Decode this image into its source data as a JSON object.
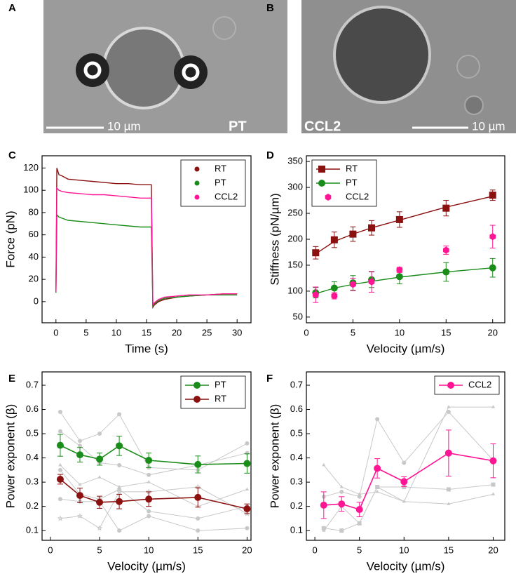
{
  "images": [
    {
      "label": "A",
      "scale_bar": "10 µm",
      "caption": "PT"
    },
    {
      "label": "B",
      "scale_bar": "10 µm",
      "caption": "CCL2"
    }
  ],
  "chart_data": [
    {
      "type": "line",
      "label": "C",
      "xlabel": "Time (s)",
      "ylabel": "Force (pN)",
      "x": [
        0,
        0.15,
        0.5,
        1,
        2,
        4,
        6,
        8,
        10,
        12,
        14,
        15.8,
        16.05,
        16.3,
        17,
        18,
        20,
        22,
        25,
        28,
        30
      ],
      "xlim": [
        -2.3,
        32.3
      ],
      "xticks": [
        0,
        5,
        10,
        15,
        20,
        25,
        30
      ],
      "ylim": [
        -19,
        131
      ],
      "yticks": [
        0,
        20,
        40,
        60,
        80,
        100,
        120
      ],
      "legend": "upper right",
      "series": [
        {
          "name": "RT",
          "color": "#8b1010",
          "values": [
            10,
            120,
            114,
            113,
            110,
            109,
            108,
            107,
            106,
            106,
            105,
            105,
            -5,
            -3,
            0,
            2,
            4,
            5,
            6,
            7,
            7
          ]
        },
        {
          "name": "PT",
          "color": "#1a8c1a",
          "values": [
            8,
            78,
            76,
            75,
            73,
            72,
            71,
            70,
            69,
            68,
            67,
            67,
            -4,
            -2,
            1,
            3,
            4,
            5,
            6,
            6,
            6
          ]
        },
        {
          "name": "CCL2",
          "color": "#ff1493",
          "values": [
            9,
            102,
            100,
            99,
            98,
            97,
            96,
            96,
            95,
            94,
            93,
            93,
            -3,
            -1,
            2,
            4,
            5,
            6,
            6,
            7,
            7
          ]
        }
      ]
    },
    {
      "type": "scatter",
      "label": "D",
      "xlabel": "Velocity (µm/s)",
      "ylabel": "Stiffness (pN/µm)",
      "x": [
        1,
        3,
        5,
        7,
        10,
        15,
        20
      ],
      "xlim": [
        0,
        21.3
      ],
      "xticks": [
        0,
        5,
        10,
        15,
        20
      ],
      "ylim": [
        39,
        361
      ],
      "yticks": [
        50,
        100,
        150,
        200,
        250,
        300,
        350
      ],
      "legend": "upper left",
      "series": [
        {
          "name": "RT",
          "color": "#8b1010",
          "marker": "square",
          "values": [
            174,
            199,
            210,
            222,
            238,
            260,
            285
          ],
          "errors": [
            12,
            15,
            14,
            14,
            15,
            15,
            10
          ],
          "fit": [
            172,
            196,
            210,
            222,
            237,
            262,
            283
          ]
        },
        {
          "name": "PT",
          "color": "#1a8c1a",
          "marker": "circle",
          "values": [
            97,
            106,
            116,
            122,
            128,
            137,
            145
          ],
          "errors": [
            10,
            12,
            14,
            15,
            14,
            18,
            18
          ],
          "fit": [
            95,
            106,
            113,
            119,
            127,
            137,
            145
          ]
        },
        {
          "name": "CCL2",
          "color": "#ff1493",
          "marker": "hexagon",
          "values": [
            93,
            91,
            113,
            118,
            141,
            179,
            205
          ],
          "errors": [
            15,
            6,
            12,
            20,
            5,
            8,
            22
          ]
        }
      ]
    },
    {
      "type": "line",
      "label": "E",
      "xlabel": "Velocity (µm/s)",
      "ylabel": "Power exponent (β)",
      "x": [
        1,
        3,
        5,
        7,
        10,
        15,
        20
      ],
      "xlim": [
        -0.85,
        20.4
      ],
      "xticks": [
        0,
        5,
        10,
        15,
        20
      ],
      "ylim": [
        0.06,
        0.755
      ],
      "yticks": [
        0.1,
        0.2,
        0.3,
        0.4,
        0.5,
        0.6,
        0.7
      ],
      "legend": "upper right",
      "series": [
        {
          "color": "#c8c8c8",
          "marker": "circle",
          "values": [
            0.59,
            0.47,
            0.5,
            0.58,
            0.36,
            0.35,
            0.46
          ]
        },
        {
          "color": "#c8c8c8",
          "marker": "circle",
          "values": [
            0.51,
            0.45,
            0.38,
            0.37,
            0.33,
            0.37,
            0.42
          ]
        },
        {
          "color": "#c8c8c8",
          "marker": "triangle",
          "values": [
            0.37,
            0.29,
            0.32,
            0.28,
            0.3,
            0.2,
            0.27
          ]
        },
        {
          "color": "#c8c8c8",
          "marker": "circle",
          "values": [
            0.35,
            0.25,
            0.23,
            0.27,
            0.18,
            0.15,
            0.2
          ]
        },
        {
          "color": "#c8c8c8",
          "marker": "circle",
          "values": [
            0.23,
            0.22,
            0.22,
            0.1,
            0.16,
            0.1,
            0.11
          ]
        },
        {
          "color": "#c8c8c8",
          "marker": "star",
          "values": [
            0.15,
            0.16,
            0.11,
            0.26,
            0.26,
            0.28,
            0.17
          ]
        },
        {
          "name": "PT",
          "color": "#1a8c1a",
          "marker": "circle",
          "values": [
            0.452,
            0.413,
            0.395,
            0.45,
            0.39,
            0.373,
            0.377
          ],
          "errors": [
            0.045,
            0.03,
            0.025,
            0.04,
            0.03,
            0.035,
            0.04
          ]
        },
        {
          "name": "RT",
          "color": "#8b1010",
          "marker": "circle",
          "values": [
            0.312,
            0.245,
            0.217,
            0.22,
            0.23,
            0.237,
            0.19
          ],
          "errors": [
            0.02,
            0.03,
            0.025,
            0.03,
            0.03,
            0.04,
            0.02
          ]
        }
      ]
    },
    {
      "type": "line",
      "label": "F",
      "xlabel": "Velocity (µm/s)",
      "ylabel": "Power exponent (β)",
      "x": [
        1,
        3,
        5,
        7,
        10,
        15,
        20
      ],
      "xlim": [
        -0.95,
        21.3
      ],
      "xticks": [
        0,
        5,
        10,
        15,
        20
      ],
      "ylim": [
        0.06,
        0.755
      ],
      "yticks": [
        0.1,
        0.2,
        0.3,
        0.4,
        0.5,
        0.6,
        0.7
      ],
      "legend": "upper right",
      "series": [
        {
          "color": "#c8c8c8",
          "marker": "triangle",
          "values": [
            0.37,
            0.28,
            0.25,
            0.26,
            0.22,
            0.61,
            0.61
          ]
        },
        {
          "color": "#c8c8c8",
          "marker": "circle",
          "values": [
            0.24,
            0.26,
            0.24,
            0.56,
            0.38,
            0.59,
            0.39
          ]
        },
        {
          "color": "#c8c8c8",
          "marker": "square",
          "values": [
            0.11,
            0.1,
            0.13,
            0.28,
            0.28,
            0.27,
            0.29
          ]
        },
        {
          "color": "#c8c8c8",
          "marker": "triangle",
          "values": [
            0.1,
            0.2,
            0.13,
            0.28,
            0.22,
            0.21,
            0.25
          ]
        },
        {
          "name": "CCL2",
          "color": "#ff1493",
          "marker": "circle",
          "values": [
            0.205,
            0.21,
            0.187,
            0.357,
            0.302,
            0.42,
            0.388
          ],
          "errors": [
            0.055,
            0.03,
            0.03,
            0.04,
            0.02,
            0.095,
            0.07
          ]
        }
      ]
    }
  ]
}
